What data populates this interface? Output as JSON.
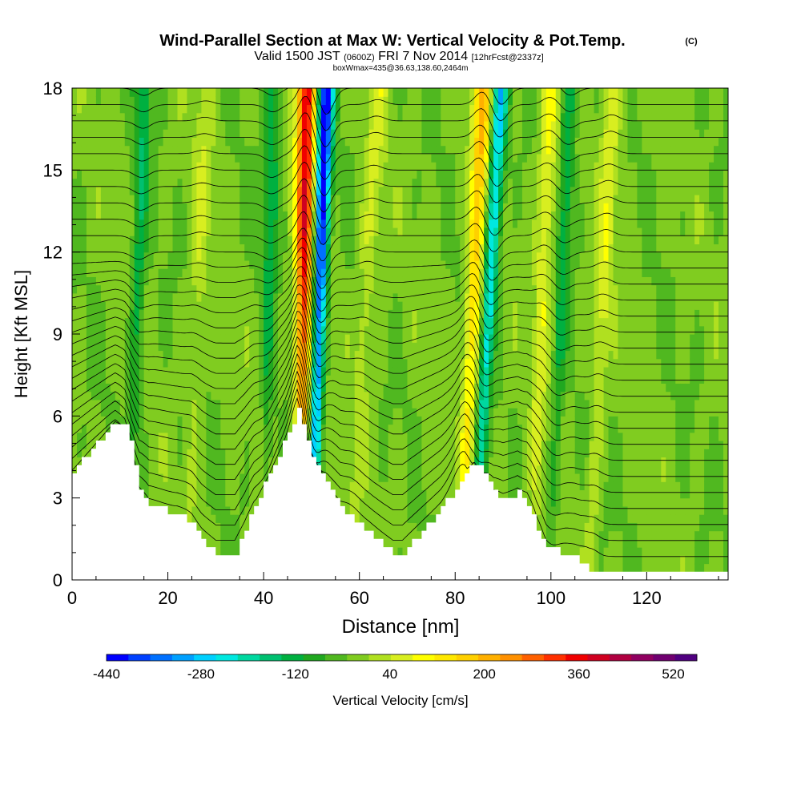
{
  "header": {
    "title": "Wind-Parallel Section at Max W: Vertical Velocity & Pot.Temp.",
    "copyright": "(C)",
    "valid_prefix": "Valid 1500 JST",
    "valid_z": "(0600Z)",
    "valid_date": "FRI 7 Nov 2014",
    "forecast": "[12hrFcst@2337z]",
    "box_info": "boxWmax=435@36.63,138.60,2464m"
  },
  "colorbar": {
    "label": "Vertical Velocity [cm/s]",
    "tick_labels": [
      "-440",
      "-280",
      "-120",
      "40",
      "200",
      "360",
      "520"
    ],
    "colors": [
      "#0000ff",
      "#0040ff",
      "#0070ff",
      "#00a0ff",
      "#00d0ff",
      "#00e8e0",
      "#00d8a0",
      "#00c070",
      "#00b040",
      "#20a820",
      "#50b820",
      "#80cc20",
      "#b0e020",
      "#d8ee20",
      "#ffff00",
      "#ffe800",
      "#ffd000",
      "#ffb000",
      "#ff9000",
      "#ff6000",
      "#ff3000",
      "#f00000",
      "#d00020",
      "#b00040",
      "#900060",
      "#700070",
      "#500080"
    ]
  },
  "chart_data": {
    "type": "heatmap",
    "title": "Wind-Parallel Section at Max W: Vertical Velocity & Pot.Temp.",
    "xlabel": "Distance [nm]",
    "ylabel": "Height [Kft MSL]",
    "xlim": [
      0,
      137
    ],
    "ylim": [
      0,
      18
    ],
    "x_ticks": [
      "0",
      "20",
      "40",
      "60",
      "80",
      "100",
      "120"
    ],
    "y_ticks": [
      "0",
      "3",
      "6",
      "9",
      "12",
      "15",
      "18"
    ],
    "colorbar_range": [
      -440,
      560
    ],
    "colorbar_step": 40,
    "terrain_height_kft": [
      [
        0,
        4.0
      ],
      [
        3,
        4.6
      ],
      [
        6,
        5.2
      ],
      [
        9,
        5.8
      ],
      [
        11,
        5.6
      ],
      [
        12,
        5.0
      ],
      [
        13,
        4.2
      ],
      [
        14,
        3.4
      ],
      [
        16,
        2.8
      ],
      [
        19,
        2.6
      ],
      [
        22,
        2.4
      ],
      [
        25,
        2.0
      ],
      [
        27,
        1.5
      ],
      [
        30,
        1.0
      ],
      [
        34,
        1.0
      ],
      [
        36,
        1.8
      ],
      [
        38,
        2.8
      ],
      [
        41,
        3.8
      ],
      [
        43,
        4.6
      ],
      [
        45,
        5.4
      ],
      [
        47,
        6.2
      ],
      [
        48,
        5.6
      ],
      [
        50,
        4.6
      ],
      [
        52,
        4.0
      ],
      [
        54,
        3.2
      ],
      [
        56,
        2.6
      ],
      [
        59,
        2.2
      ],
      [
        62,
        1.8
      ],
      [
        65,
        1.3
      ],
      [
        67,
        1.0
      ],
      [
        69,
        1.0
      ],
      [
        71,
        1.4
      ],
      [
        74,
        2.0
      ],
      [
        77,
        2.6
      ],
      [
        80,
        3.4
      ],
      [
        82,
        4.0
      ],
      [
        84,
        4.3
      ],
      [
        86,
        3.8
      ],
      [
        88,
        3.2
      ],
      [
        90,
        3.0
      ],
      [
        93,
        3.2
      ],
      [
        95,
        2.8
      ],
      [
        97,
        1.8
      ],
      [
        99,
        1.2
      ],
      [
        102,
        1.0
      ],
      [
        105,
        0.8
      ],
      [
        108,
        0.4
      ],
      [
        111,
        0.3
      ],
      [
        137,
        0.3
      ]
    ],
    "updraft_bands": [
      {
        "x_top": 49,
        "x_bottom": 47.5,
        "peak_cm_s": 420
      },
      {
        "x_top": 86,
        "x_bottom": 81,
        "peak_cm_s": 220
      },
      {
        "x_top": 100,
        "x_bottom": 96,
        "peak_cm_s": 120
      },
      {
        "x_top": 113,
        "x_bottom": 108,
        "peak_cm_s": 100
      },
      {
        "x_top": 64,
        "x_bottom": 58,
        "peak_cm_s": 80
      },
      {
        "x_top": 28,
        "x_bottom": 24,
        "peak_cm_s": 60
      }
    ],
    "downdraft_bands": [
      {
        "x_top": 53,
        "x_bottom": 50,
        "peak_cm_s": -440
      },
      {
        "x_top": 89.5,
        "x_bottom": 84,
        "peak_cm_s": -280
      },
      {
        "x_top": 15,
        "x_bottom": 12,
        "peak_cm_s": -120
      },
      {
        "x_top": 104,
        "x_bottom": 100,
        "peak_cm_s": -120
      },
      {
        "x_top": 42,
        "x_bottom": 40,
        "peak_cm_s": -120
      }
    ],
    "theta_contour_interval_k": 1
  }
}
